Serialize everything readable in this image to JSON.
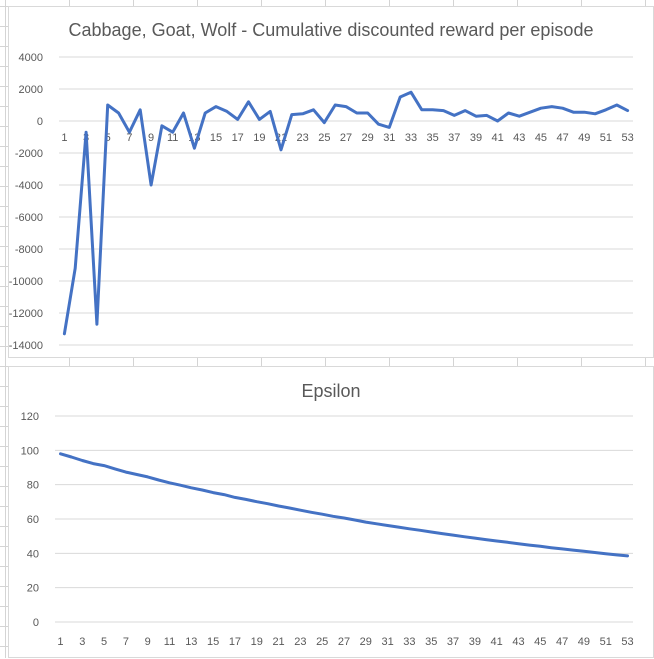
{
  "chart_data": [
    {
      "type": "line",
      "title": "Cabbage, Goat, Wolf - Cumulative discounted reward per episode",
      "xlabel": "",
      "ylabel": "",
      "ylim": [
        -14000,
        4000
      ],
      "yticks": [
        4000,
        2000,
        0,
        -2000,
        -4000,
        -6000,
        -8000,
        -10000,
        -12000,
        -14000
      ],
      "x": [
        1,
        2,
        3,
        4,
        5,
        6,
        7,
        8,
        9,
        10,
        11,
        12,
        13,
        14,
        15,
        16,
        17,
        18,
        19,
        20,
        21,
        22,
        23,
        24,
        25,
        26,
        27,
        28,
        29,
        30,
        31,
        32,
        33,
        34,
        35,
        36,
        37,
        38,
        39,
        40,
        41,
        42,
        43,
        44,
        45,
        46,
        47,
        48,
        49,
        50,
        51,
        52,
        53
      ],
      "xtick_labels": [
        "1",
        "3",
        "5",
        "7",
        "9",
        "11",
        "13",
        "15",
        "17",
        "19",
        "21",
        "23",
        "25",
        "27",
        "29",
        "31",
        "33",
        "35",
        "37",
        "39",
        "41",
        "43",
        "45",
        "47",
        "49",
        "51",
        "53"
      ],
      "series": [
        {
          "values": [
            -13300,
            -9200,
            -700,
            -12700,
            1000,
            500,
            -700,
            700,
            -4000,
            -300,
            -700,
            500,
            -1700,
            500,
            900,
            600,
            100,
            1200,
            100,
            600,
            -1800,
            400,
            450,
            700,
            -100,
            1000,
            900,
            500,
            500,
            -200,
            -400,
            1500,
            1800,
            700,
            700,
            650,
            350,
            650,
            300,
            350,
            0,
            500,
            300,
            550,
            800,
            900,
            800,
            550,
            550,
            450,
            700,
            1000,
            650
          ],
          "color": "#4472c4"
        }
      ],
      "grid": true,
      "legend": "none"
    },
    {
      "type": "line",
      "title": "Epsilon",
      "xlabel": "",
      "ylabel": "",
      "ylim": [
        0,
        120
      ],
      "yticks": [
        120,
        100,
        80,
        60,
        40,
        20,
        0
      ],
      "x": [
        1,
        2,
        3,
        4,
        5,
        6,
        7,
        8,
        9,
        10,
        11,
        12,
        13,
        14,
        15,
        16,
        17,
        18,
        19,
        20,
        21,
        22,
        23,
        24,
        25,
        26,
        27,
        28,
        29,
        30,
        31,
        32,
        33,
        34,
        35,
        36,
        37,
        38,
        39,
        40,
        41,
        42,
        43,
        44,
        45,
        46,
        47,
        48,
        49,
        50,
        51,
        52,
        53
      ],
      "xtick_labels": [
        "1",
        "3",
        "5",
        "7",
        "9",
        "11",
        "13",
        "15",
        "17",
        "19",
        "21",
        "23",
        "25",
        "27",
        "29",
        "31",
        "33",
        "35",
        "37",
        "39",
        "41",
        "43",
        "45",
        "47",
        "49",
        "51",
        "53"
      ],
      "series": [
        {
          "values": [
            98,
            96.1,
            94.1,
            92.3,
            91.1,
            89.2,
            87.3,
            85.9,
            84.5,
            82.7,
            81.1,
            79.7,
            78.2,
            76.9,
            75.4,
            74.2,
            72.6,
            71.4,
            70.1,
            68.9,
            67.6,
            66.4,
            65.1,
            63.9,
            62.8,
            61.6,
            60.6,
            59.4,
            58.2,
            57.2,
            56.2,
            55.3,
            54.3,
            53.4,
            52.4,
            51.5,
            50.6,
            49.7,
            48.9,
            48.0,
            47.2,
            46.4,
            45.6,
            44.8,
            44.1,
            43.3,
            42.6,
            41.9,
            41.2,
            40.5,
            39.8,
            39.1,
            38.5
          ],
          "color": "#4472c4"
        }
      ],
      "grid": true,
      "legend": "none"
    }
  ]
}
